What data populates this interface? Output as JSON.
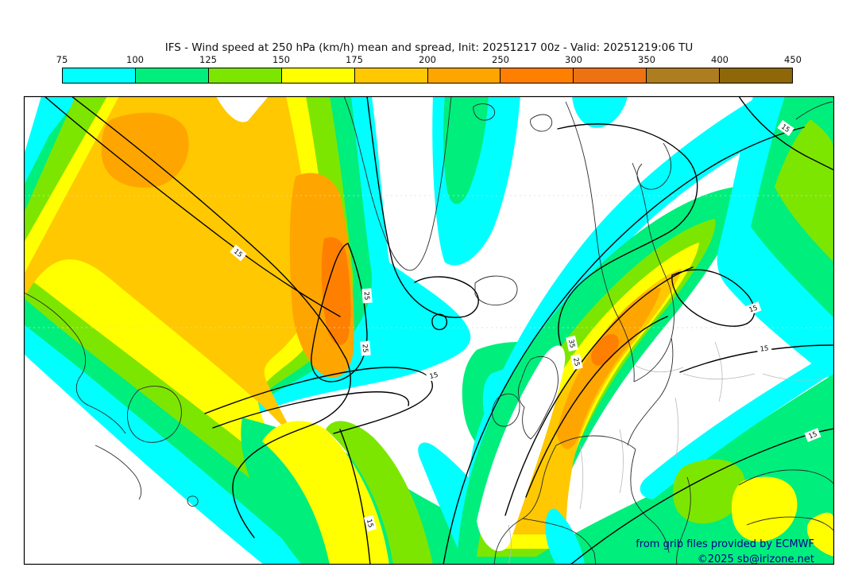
{
  "header": {
    "title": "IFS - Wind speed at 250 hPa (km/h) mean and spread, Init: 20251217 00z - Valid: 20251219:06 TU"
  },
  "chart_data": {
    "type": "filled_contour_map",
    "title": "IFS - Wind speed at 250 hPa (km/h) mean and spread, Init: 20251217 00z - Valid: 20251219:06 TU",
    "model": "IFS",
    "variable": "Wind speed at 250 hPa",
    "unit": "km/h",
    "statistic": "mean and spread",
    "init": "20251217 00z",
    "valid": "20251219:06 TU",
    "colorbar_levels": [
      "75",
      "100",
      "125",
      "150",
      "175",
      "200",
      "250",
      "300",
      "350",
      "400",
      "450"
    ],
    "palette": [
      {
        "level": "75",
        "color": "#00FFFF"
      },
      {
        "level": "100",
        "color": "#00EE7C"
      },
      {
        "level": "125",
        "color": "#7DE600"
      },
      {
        "level": "150",
        "color": "#FFFF00"
      },
      {
        "level": "175",
        "color": "#FFC800"
      },
      {
        "level": "200",
        "color": "#FFA500"
      },
      {
        "level": "250",
        "color": "#FF8000"
      },
      {
        "level": "300",
        "color": "#ED7214"
      },
      {
        "level": "350",
        "color": "#AE7D20"
      },
      {
        "level": "400",
        "color": "#8D6708"
      }
    ],
    "background_below_min": "#FFFFFF",
    "spread_contour_levels_labeled": [
      "15",
      "25",
      "35"
    ],
    "contour_label_texts": [
      "15",
      "25",
      "25",
      "15",
      "15",
      "25",
      "35",
      "15",
      "15",
      "15",
      "15"
    ],
    "legend_position": "top",
    "grid": "faint dashed graticule"
  },
  "credits": {
    "line1": "from grib files provided by ECMWF",
    "line2": "©2025 sb@irizone.net",
    "color": "#00008B"
  }
}
